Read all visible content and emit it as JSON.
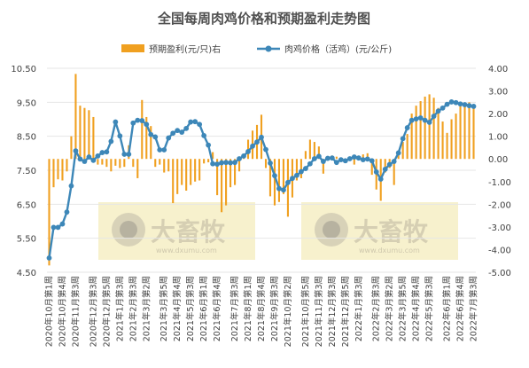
{
  "chart_data": {
    "type": "bar+line",
    "title": "全国每周肉鸡价格和预期盈利走势图",
    "legend_position": "top",
    "legend": {
      "bar_label": "预期盈利(元/只)右",
      "line_label": "肉鸡价格（活鸡）(元/公斤)"
    },
    "colors": {
      "bar": "#f0a020",
      "line": "#3d87b8",
      "grid": "#e6e6e6",
      "text": "#404040",
      "title": "#505050"
    },
    "y_left": {
      "min": 4.5,
      "max": 10.5,
      "ticks": [
        "4.50",
        "5.50",
        "6.50",
        "7.50",
        "8.50",
        "9.50",
        "10.50"
      ]
    },
    "y_right": {
      "min": -5.0,
      "max": 4.0,
      "ticks": [
        "-5.00",
        "-4.00",
        "-3.00",
        "-2.00",
        "-1.00",
        "0.00",
        "1.00",
        "2.00",
        "3.00",
        "4.00"
      ]
    },
    "x_tick_labels": [
      "2020年10月第1周",
      "2020年10月第4周",
      "2020年11月第3周",
      "2020年12月第3周",
      "2020年12月第5周",
      "2021年1月第3周",
      "2021年2月第3周",
      "2021年3月第2周",
      "2021年3月第5周",
      "2021年4月第4周",
      "2021年5月第3周",
      "2021年6月第1周",
      "2021年6月第4周",
      "2021年7月第3周",
      "2021年8月第1周",
      "2021年8月第4周",
      "2021年9月第3周",
      "2021年10月第2周",
      "2021年10月第5周",
      "2021年11月第3周",
      "2021年12月第3周",
      "2021年12月第5周",
      "2022年1月第3周",
      "2022年2月第3周",
      "2022年3月第2周",
      "2022年3月第5周",
      "2022年4月第4周",
      "2022年5月第3周",
      "2022年6月第1周",
      "2022年6月第4周",
      "2022年7月第3周"
    ],
    "price_series": [
      4.92,
      5.82,
      5.82,
      5.92,
      6.27,
      7.04,
      8.07,
      7.83,
      7.76,
      7.89,
      7.79,
      7.92,
      8.02,
      8.04,
      8.35,
      8.92,
      8.51,
      7.97,
      7.97,
      8.89,
      8.97,
      8.96,
      8.85,
      8.55,
      8.48,
      8.1,
      8.1,
      8.45,
      8.59,
      8.67,
      8.62,
      8.73,
      8.92,
      8.93,
      8.85,
      8.52,
      8.24,
      7.69,
      7.68,
      7.72,
      7.73,
      7.72,
      7.73,
      7.84,
      7.92,
      8.05,
      8.21,
      8.33,
      8.47,
      8.11,
      7.71,
      7.34,
      6.96,
      6.92,
      7.14,
      7.26,
      7.35,
      7.46,
      7.55,
      7.69,
      7.84,
      7.91,
      7.76,
      7.85,
      7.86,
      7.73,
      7.81,
      7.78,
      7.84,
      7.89,
      7.86,
      7.81,
      7.83,
      7.78,
      7.45,
      7.24,
      7.53,
      7.67,
      7.76,
      8.01,
      8.43,
      8.75,
      8.97,
      9.01,
      9.04,
      8.97,
      8.91,
      9.09,
      9.24,
      9.33,
      9.44,
      9.51,
      9.49,
      9.45,
      9.43,
      9.4,
      9.38
    ],
    "profit_series": [
      -4.7,
      -1.25,
      -0.9,
      -0.95,
      -0.55,
      1.0,
      3.75,
      2.35,
      2.25,
      2.15,
      1.85,
      -0.25,
      -0.25,
      -0.35,
      -0.55,
      -0.3,
      -0.4,
      -0.35,
      0.6,
      -0.35,
      -0.85,
      2.6,
      1.85,
      1.45,
      -0.35,
      -0.25,
      -0.6,
      -0.55,
      -1.95,
      -1.55,
      -1.15,
      -1.4,
      -1.15,
      -1.0,
      -0.95,
      -0.2,
      -0.15,
      0.3,
      -1.6,
      -2.35,
      -2.05,
      -1.25,
      -1.15,
      -0.55,
      0.2,
      0.85,
      1.25,
      1.5,
      1.95,
      -0.4,
      -1.65,
      -2.05,
      -1.9,
      -1.55,
      -2.55,
      -1.7,
      -0.95,
      -0.85,
      0.35,
      0.85,
      0.75,
      0.55,
      -0.65,
      -0.05,
      0.15,
      0.1,
      0.05,
      -0.05,
      0.1,
      -0.25,
      0.15,
      0.2,
      0.25,
      -0.7,
      -1.35,
      -1.85,
      -0.6,
      -0.4,
      -1.15,
      0.2,
      0.75,
      1.1,
      2.0,
      2.35,
      2.55,
      2.75,
      2.85,
      2.7,
      2.25,
      1.65,
      1.15,
      1.75,
      2.0,
      2.5,
      2.45,
      2.5,
      2.35
    ]
  },
  "watermarks": [
    {
      "brand": "大畜牧",
      "domain": "www.dxumu.com"
    },
    {
      "brand": "大畜牧",
      "domain": "www.dxumu.com"
    }
  ]
}
